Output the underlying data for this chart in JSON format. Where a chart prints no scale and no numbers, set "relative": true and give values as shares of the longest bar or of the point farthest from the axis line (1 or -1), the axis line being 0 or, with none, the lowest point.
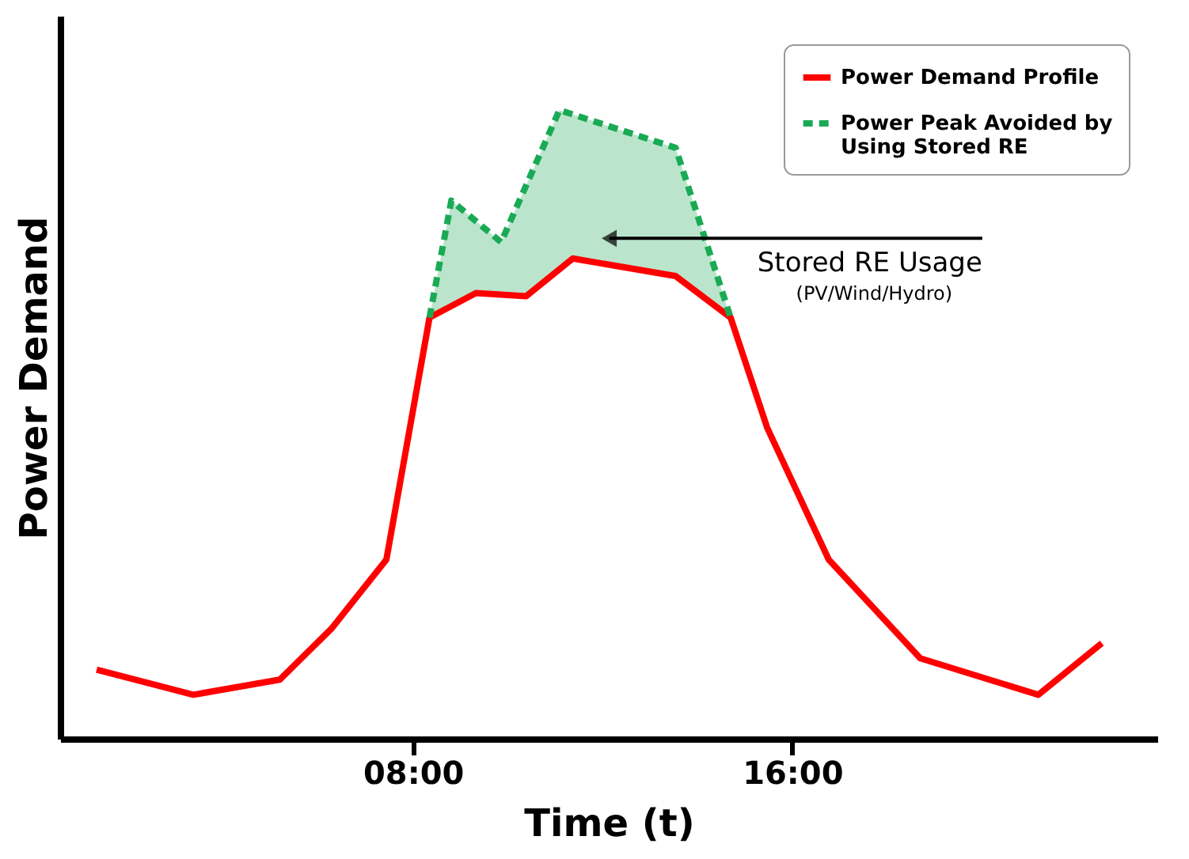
{
  "chart_data": {
    "type": "line",
    "xlabel": "Time (t)",
    "ylabel": "Power Demand",
    "relative": true,
    "xlim": [
      0.56,
      23.7
    ],
    "xticks": [
      {
        "value": 8,
        "label": "08:00"
      },
      {
        "value": 16,
        "label": "16:00"
      }
    ],
    "grid": false,
    "legend": "top right",
    "marker": "none",
    "series": [
      {
        "name": "Power Demand Profile",
        "color": "#ff0000",
        "line_style": "solid",
        "x": [
          1.33,
          3.37,
          5.19,
          6.28,
          7.44,
          8.35,
          9.33,
          10.39,
          11.37,
          13.54,
          14.7,
          15.47,
          16.77,
          18.7,
          21.19,
          22.53
        ],
        "values": [
          0.11,
          0.07,
          0.094,
          0.175,
          0.285,
          0.67,
          0.709,
          0.704,
          0.764,
          0.736,
          0.67,
          0.495,
          0.285,
          0.128,
          0.07,
          0.152
        ]
      },
      {
        "name": "Power Peak Avoided by Using Stored RE",
        "color": "#1aaa55",
        "line_style": "dashed",
        "x": [
          8.35,
          8.81,
          9.86,
          11.09,
          13.54,
          14.7
        ],
        "values": [
          0.67,
          0.856,
          0.79,
          1.0,
          0.94,
          0.67
        ]
      }
    ],
    "annotations": [
      {
        "text": "Stored RE Usage",
        "x": 12.14,
        "y": 0.796
      },
      "(PV/Wind/Hydro)"
    ]
  }
}
